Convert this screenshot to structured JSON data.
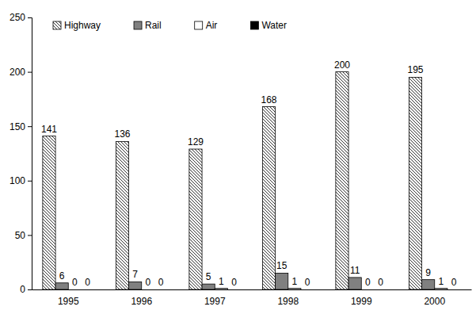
{
  "chart_data": {
    "type": "bar",
    "categories": [
      "1995",
      "1996",
      "1997",
      "1998",
      "1999",
      "2000"
    ],
    "series": [
      {
        "name": "Highway",
        "color": "#000000",
        "values": [
          141,
          136,
          129,
          168,
          200,
          195
        ]
      },
      {
        "name": "Rail",
        "color": "#808080",
        "values": [
          6,
          7,
          5,
          15,
          11,
          9
        ]
      },
      {
        "name": "Air",
        "color": "#ffffff",
        "values": [
          0,
          0,
          1,
          1,
          0,
          1
        ]
      },
      {
        "name": "Water",
        "color": "#000000",
        "values": [
          0,
          0,
          0,
          0,
          0,
          0
        ]
      }
    ],
    "ylim": [
      0,
      250
    ],
    "yticks": [
      0,
      50,
      100,
      150,
      200,
      250
    ],
    "grid": false,
    "legend": "top-left",
    "data_labels": true
  }
}
